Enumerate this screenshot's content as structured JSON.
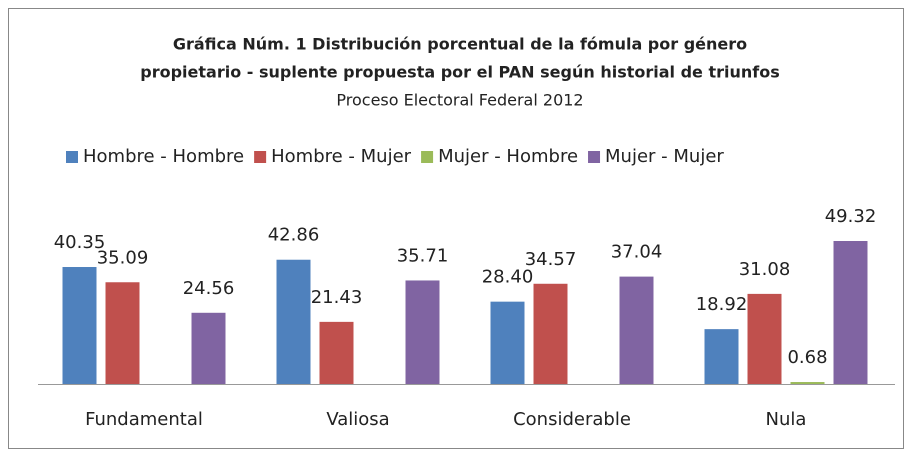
{
  "chart_data": {
    "type": "bar",
    "title": [
      "Gráfica Núm. 1 Distribución porcentual de la fómula por género",
      "propietario - suplente  propuesta por el PAN según historial de triunfos"
    ],
    "subtitle": "Proceso Electoral Federal 2012",
    "categories": [
      "Fundamental",
      "Valiosa",
      "Considerable",
      "Nula"
    ],
    "series": [
      {
        "name": "Hombre - Hombre",
        "color": "#4f81bd",
        "values": [
          40.35,
          42.86,
          28.4,
          18.92
        ],
        "value_labels": [
          "40.35",
          "42.86",
          "28.40",
          "18.92"
        ]
      },
      {
        "name": "Hombre - Mujer",
        "color": "#c0504d",
        "values": [
          35.09,
          21.43,
          34.57,
          31.08
        ],
        "value_labels": [
          "35.09",
          "21.43",
          "34.57",
          "31.08"
        ]
      },
      {
        "name": "Mujer - Hombre",
        "color": "#9bbb59",
        "values": [
          null,
          null,
          null,
          0.68
        ],
        "value_labels": [
          null,
          null,
          null,
          "0.68"
        ]
      },
      {
        "name": "Mujer - Mujer",
        "color": "#8064a2",
        "values": [
          24.56,
          35.71,
          37.04,
          49.32
        ],
        "value_labels": [
          "24.56",
          "35.71",
          "37.04",
          "49.32"
        ]
      }
    ],
    "legend": "top"
  }
}
